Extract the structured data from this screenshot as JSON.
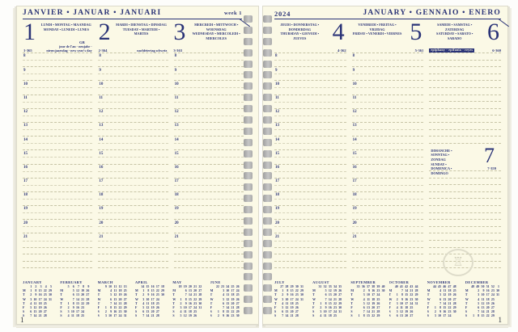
{
  "colors": {
    "accent_navy": "#2a3377",
    "paper_cream": "#fbf9e6",
    "rule_dash": "#c7c4a6"
  },
  "hours": [
    "8",
    "9",
    "10",
    "11",
    "12",
    "13",
    "14",
    "15",
    "16",
    "17",
    "18",
    "19",
    "20",
    "21"
  ],
  "left_page": {
    "header": {
      "title": "JANVIER • JANUAR • JANUARI",
      "week_label": "week 1"
    },
    "page_number": "1",
    "days": [
      {
        "num": "1",
        "ordinal": "1-365",
        "names_line1": "LUNDI • MONTAG • MAANDAG",
        "names_line2": "MONDAY • LUNEDI • LUNES",
        "badge": "GB",
        "note_line1": "jour de l'an - neujahr -",
        "note_line2": "nieuwjaarsdag - new year's day"
      },
      {
        "num": "2",
        "ordinal": "2-364",
        "names_line1": "MARDI • DIENSTAG • DINSDAG",
        "names_line2": "TUESDAY • MARTEDI • MARTES",
        "badge": "",
        "note_line1": "",
        "note_line2": "nachfeiertag schweiz"
      },
      {
        "num": "3",
        "ordinal": "3-363",
        "names_line1": "MERCREDI • MITTWOCH • WOENSDAG",
        "names_line2": "WEDNESDAY • MERCOLEDI • MIERCOLES",
        "badge": "",
        "note_line1": "",
        "note_line2": ""
      }
    ]
  },
  "right_page": {
    "header": {
      "year": "2024",
      "title": "JANUARY • GENNAIO • ENERO"
    },
    "page_number": "1",
    "days": [
      {
        "num": "4",
        "ordinal": "4-362",
        "names_line1": "JEUDI • DONNERSTAG • DONDERDAG",
        "names_line2": "THURSDAY • GIOVEDI • JUEVES",
        "boxed_note": ""
      },
      {
        "num": "5",
        "ordinal": "5-361",
        "names_line1": "VENDREDI • FREITAG • VRIJDAG",
        "names_line2": "FRIDAY • VENERDI • VIERNES",
        "boxed_note": ""
      },
      {
        "num": "6",
        "ordinal": "6-360",
        "names_line1": "SAMEDI • SAMSTAG • ZATERDAG",
        "names_line2": "SATURDAY • SABATO • SABADO",
        "boxed_note": "epiphany - epifania - reyes"
      }
    ],
    "sunday": {
      "num": "7",
      "ordinal": "7-359",
      "names_line1": "DIMANCHE • SONNTAG • ZONDAG",
      "names_line2": "SUNDAY • DOMENICA • DOMINGO"
    }
  },
  "mini_calendars": {
    "day_letters": [
      "M",
      "T",
      "W",
      "T",
      "F",
      "S",
      "S"
    ],
    "left": [
      {
        "name": "JANUARY",
        "weeks": [
          "1",
          "2",
          "3",
          "4",
          "5"
        ],
        "rows": [
          [
            "1",
            "8",
            "15",
            "22",
            "29"
          ],
          [
            "2",
            "9",
            "16",
            "23",
            "30"
          ],
          [
            "3",
            "10",
            "17",
            "24",
            "31"
          ],
          [
            "4",
            "11",
            "18",
            "25",
            ""
          ],
          [
            "5",
            "12",
            "19",
            "26",
            ""
          ],
          [
            "6",
            "13",
            "20",
            "27",
            ""
          ],
          [
            "7",
            "14",
            "21",
            "28",
            ""
          ]
        ]
      },
      {
        "name": "FEBRUARY",
        "weeks": [
          "5",
          "6",
          "7",
          "8",
          "9"
        ],
        "rows": [
          [
            "",
            "5",
            "12",
            "19",
            "26"
          ],
          [
            "",
            "6",
            "13",
            "20",
            "27"
          ],
          [
            "",
            "7",
            "14",
            "21",
            "28"
          ],
          [
            "1",
            "8",
            "15",
            "22",
            "29"
          ],
          [
            "2",
            "9",
            "16",
            "23",
            ""
          ],
          [
            "3",
            "10",
            "17",
            "24",
            ""
          ],
          [
            "4",
            "11",
            "18",
            "25",
            ""
          ]
        ]
      },
      {
        "name": "MARCH",
        "weeks": [
          "9",
          "10",
          "11",
          "12",
          "13"
        ],
        "rows": [
          [
            "",
            "4",
            "11",
            "18",
            "25"
          ],
          [
            "",
            "5",
            "12",
            "19",
            "26"
          ],
          [
            "",
            "6",
            "13",
            "20",
            "27"
          ],
          [
            "",
            "7",
            "14",
            "21",
            "28"
          ],
          [
            "1",
            "8",
            "15",
            "22",
            "29"
          ],
          [
            "2",
            "9",
            "16",
            "23",
            "30"
          ],
          [
            "3",
            "10",
            "17",
            "24",
            "31"
          ]
        ]
      },
      {
        "name": "APRIL",
        "weeks": [
          "14",
          "15",
          "16",
          "17",
          "18"
        ],
        "rows": [
          [
            "1",
            "8",
            "15",
            "22",
            "29"
          ],
          [
            "2",
            "9",
            "16",
            "23",
            "30"
          ],
          [
            "3",
            "10",
            "17",
            "24",
            ""
          ],
          [
            "4",
            "11",
            "18",
            "25",
            ""
          ],
          [
            "5",
            "12",
            "19",
            "26",
            ""
          ],
          [
            "6",
            "13",
            "20",
            "27",
            ""
          ],
          [
            "7",
            "14",
            "21",
            "28",
            ""
          ]
        ]
      },
      {
        "name": "MAY",
        "weeks": [
          "18",
          "19",
          "20",
          "21",
          "22"
        ],
        "rows": [
          [
            "",
            "6",
            "13",
            "20",
            "27"
          ],
          [
            "",
            "7",
            "14",
            "21",
            "28"
          ],
          [
            "1",
            "8",
            "15",
            "22",
            "29"
          ],
          [
            "2",
            "9",
            "16",
            "23",
            "30"
          ],
          [
            "3",
            "10",
            "17",
            "24",
            "31"
          ],
          [
            "4",
            "11",
            "18",
            "25",
            ""
          ],
          [
            "5",
            "12",
            "19",
            "26",
            ""
          ]
        ]
      },
      {
        "name": "JUNE",
        "weeks": [
          "22",
          "23",
          "24",
          "25",
          "26"
        ],
        "rows": [
          [
            "",
            "3",
            "10",
            "17",
            "24"
          ],
          [
            "",
            "4",
            "11",
            "18",
            "25"
          ],
          [
            "",
            "5",
            "12",
            "19",
            "26"
          ],
          [
            "",
            "6",
            "13",
            "20",
            "27"
          ],
          [
            "",
            "7",
            "14",
            "21",
            "28"
          ],
          [
            "1",
            "8",
            "15",
            "22",
            "29"
          ],
          [
            "2",
            "9",
            "16",
            "23",
            "30"
          ]
        ]
      }
    ],
    "right": [
      {
        "name": "JULY",
        "weeks": [
          "27",
          "28",
          "29",
          "30",
          "31"
        ],
        "rows": [
          [
            "1",
            "8",
            "15",
            "22",
            "29"
          ],
          [
            "2",
            "9",
            "16",
            "23",
            "30"
          ],
          [
            "3",
            "10",
            "17",
            "24",
            "31"
          ],
          [
            "4",
            "11",
            "18",
            "25",
            ""
          ],
          [
            "5",
            "12",
            "19",
            "26",
            ""
          ],
          [
            "6",
            "13",
            "20",
            "27",
            ""
          ],
          [
            "7",
            "14",
            "21",
            "28",
            ""
          ]
        ]
      },
      {
        "name": "AUGUST",
        "weeks": [
          "31",
          "32",
          "33",
          "34",
          "35"
        ],
        "rows": [
          [
            "",
            "5",
            "12",
            "19",
            "26"
          ],
          [
            "",
            "6",
            "13",
            "20",
            "27"
          ],
          [
            "",
            "7",
            "14",
            "21",
            "28"
          ],
          [
            "1",
            "8",
            "15",
            "22",
            "29"
          ],
          [
            "2",
            "9",
            "16",
            "23",
            "30"
          ],
          [
            "3",
            "10",
            "17",
            "24",
            "31"
          ],
          [
            "4",
            "11",
            "18",
            "25",
            ""
          ]
        ]
      },
      {
        "name": "SEPTEMBER",
        "weeks": [
          "35",
          "36",
          "37",
          "38",
          "39",
          "40"
        ],
        "rows": [
          [
            "",
            "2",
            "9",
            "16",
            "23",
            "30"
          ],
          [
            "",
            "3",
            "10",
            "17",
            "24",
            ""
          ],
          [
            "",
            "4",
            "11",
            "18",
            "25",
            ""
          ],
          [
            "",
            "5",
            "12",
            "19",
            "26",
            ""
          ],
          [
            "",
            "6",
            "13",
            "20",
            "27",
            ""
          ],
          [
            "",
            "7",
            "14",
            "21",
            "28",
            ""
          ],
          [
            "1",
            "8",
            "15",
            "22",
            "29",
            ""
          ]
        ]
      },
      {
        "name": "OCTOBER",
        "weeks": [
          "40",
          "41",
          "42",
          "43",
          "44"
        ],
        "rows": [
          [
            "",
            "7",
            "14",
            "21",
            "28"
          ],
          [
            "1",
            "8",
            "15",
            "22",
            "29"
          ],
          [
            "2",
            "9",
            "16",
            "23",
            "30"
          ],
          [
            "3",
            "10",
            "17",
            "24",
            "31"
          ],
          [
            "4",
            "11",
            "18",
            "25",
            ""
          ],
          [
            "5",
            "12",
            "19",
            "26",
            ""
          ],
          [
            "6",
            "13",
            "20",
            "27",
            ""
          ]
        ]
      },
      {
        "name": "NOVEMBER",
        "weeks": [
          "44",
          "45",
          "46",
          "47",
          "48"
        ],
        "rows": [
          [
            "",
            "4",
            "11",
            "18",
            "25"
          ],
          [
            "",
            "5",
            "12",
            "19",
            "26"
          ],
          [
            "",
            "6",
            "13",
            "20",
            "27"
          ],
          [
            "",
            "7",
            "14",
            "21",
            "28"
          ],
          [
            "1",
            "8",
            "15",
            "22",
            "29"
          ],
          [
            "2",
            "9",
            "16",
            "23",
            "30"
          ],
          [
            "3",
            "10",
            "17",
            "24",
            ""
          ]
        ]
      },
      {
        "name": "DECEMBER",
        "weeks": [
          "48",
          "49",
          "50",
          "51",
          "52",
          "1"
        ],
        "rows": [
          [
            "",
            "2",
            "9",
            "16",
            "23",
            "30"
          ],
          [
            "",
            "3",
            "10",
            "17",
            "24",
            "31"
          ],
          [
            "",
            "4",
            "11",
            "18",
            "25",
            ""
          ],
          [
            "",
            "5",
            "12",
            "19",
            "26",
            ""
          ],
          [
            "",
            "6",
            "13",
            "20",
            "27",
            ""
          ],
          [
            "",
            "7",
            "14",
            "21",
            "28",
            ""
          ],
          [
            "1",
            "8",
            "15",
            "22",
            "29",
            ""
          ]
        ]
      }
    ]
  },
  "stamp": {
    "icon": "♖"
  }
}
